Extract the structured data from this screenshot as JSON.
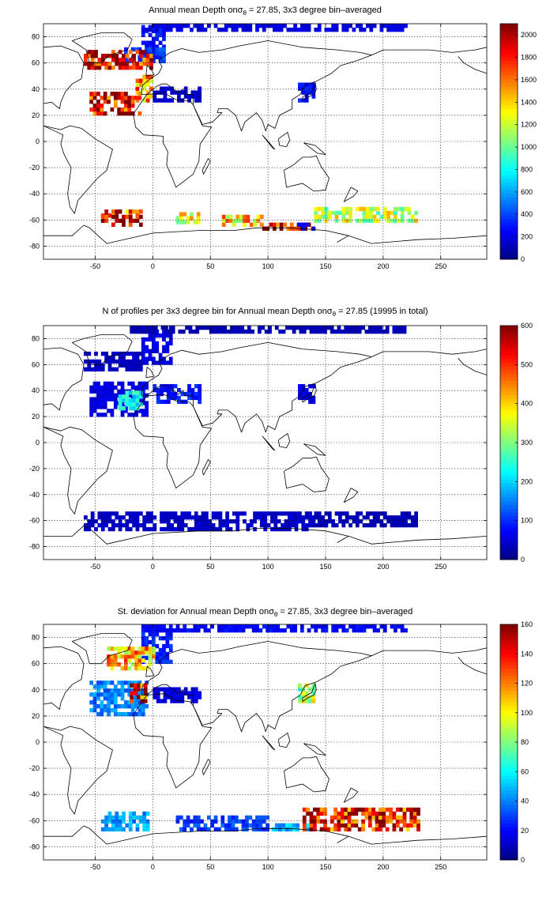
{
  "chart_data": [
    {
      "type": "heatmap",
      "title": "Annual mean Depth on",
      "title_symbol": "σ",
      "title_subscript": "θ",
      "title_rest": " = 27.85, 3x3 degree bin–averaged",
      "xlim": [
        -95,
        290
      ],
      "ylim": [
        -90,
        90
      ],
      "xticks": [
        -50,
        0,
        50,
        100,
        150,
        200,
        250
      ],
      "yticks": [
        -80,
        -60,
        -40,
        -20,
        0,
        20,
        40,
        60,
        80
      ],
      "clim": [
        0,
        2100
      ],
      "cticks": [
        0,
        200,
        400,
        600,
        800,
        1000,
        1200,
        1400,
        1600,
        1800,
        2000
      ],
      "grid": true,
      "colormap": "jet",
      "regions": [
        {
          "lon": [
            -10,
            10
          ],
          "lat": [
            65,
            88
          ],
          "value": 300
        },
        {
          "lon": [
            -25,
            10
          ],
          "lat": [
            60,
            72
          ],
          "value": 400
        },
        {
          "lon": [
            -30,
            0
          ],
          "lat": [
            55,
            68
          ],
          "value": 1900
        },
        {
          "lon": [
            -60,
            -30
          ],
          "lat": [
            55,
            68
          ],
          "value": 1950
        },
        {
          "lon": [
            -15,
            0
          ],
          "lat": [
            30,
            50
          ],
          "value": 1500
        },
        {
          "lon": [
            -55,
            -10
          ],
          "lat": [
            20,
            38
          ],
          "value": 1950
        },
        {
          "lon": [
            0,
            40
          ],
          "lat": [
            30,
            42
          ],
          "value": 150
        },
        {
          "lon": [
            126,
            140
          ],
          "lat": [
            30,
            45
          ],
          "value": 300
        },
        {
          "lon": [
            -45,
            -10
          ],
          "lat": [
            -58,
            -52
          ],
          "value": 1700
        },
        {
          "lon": [
            -45,
            -10
          ],
          "lat": [
            -65,
            -58
          ],
          "value": 1950
        },
        {
          "lon": [
            20,
            40
          ],
          "lat": [
            -63,
            -55
          ],
          "value": 1300
        },
        {
          "lon": [
            60,
            95
          ],
          "lat": [
            -65,
            -58
          ],
          "value": 1400
        },
        {
          "lon": [
            95,
            140
          ],
          "lat": [
            -68,
            -62
          ],
          "value": 1950
        },
        {
          "lon": [
            140,
            230
          ],
          "lat": [
            -62,
            -50
          ],
          "value": 1200
        },
        {
          "lon": [
            120,
            140
          ],
          "lat": [
            -68,
            -62
          ],
          "value": 200
        },
        {
          "lon": [
            -10,
            220
          ],
          "lat": [
            84,
            88
          ],
          "value": 200
        }
      ]
    },
    {
      "type": "heatmap",
      "title": "N of profiles per 3x3 degree bin for Annual mean Depth on",
      "title_symbol": "σ",
      "title_subscript": "θ",
      "title_rest": " = 27.85 (19995 in total)",
      "xlim": [
        -95,
        290
      ],
      "ylim": [
        -90,
        90
      ],
      "xticks": [
        -50,
        0,
        50,
        100,
        150,
        200,
        250
      ],
      "yticks": [
        -80,
        -60,
        -40,
        -20,
        0,
        20,
        40,
        60,
        80
      ],
      "clim": [
        0,
        600
      ],
      "cticks": [
        0,
        100,
        200,
        300,
        400,
        500,
        600
      ],
      "grid": true,
      "colormap": "jet",
      "regions": [
        {
          "lon": [
            -10,
            15
          ],
          "lat": [
            60,
            88
          ],
          "value": 60
        },
        {
          "lon": [
            -60,
            -10
          ],
          "lat": [
            55,
            70
          ],
          "value": 40
        },
        {
          "lon": [
            -55,
            -5
          ],
          "lat": [
            20,
            45
          ],
          "value": 60
        },
        {
          "lon": [
            -30,
            -10
          ],
          "lat": [
            25,
            40
          ],
          "value": 220
        },
        {
          "lon": [
            0,
            40
          ],
          "lat": [
            30,
            45
          ],
          "value": 90
        },
        {
          "lon": [
            126,
            140
          ],
          "lat": [
            30,
            45
          ],
          "value": 60
        },
        {
          "lon": [
            -60,
            140
          ],
          "lat": [
            -68,
            -55
          ],
          "value": 40
        },
        {
          "lon": [
            140,
            230
          ],
          "lat": [
            -65,
            -55
          ],
          "value": 30
        },
        {
          "lon": [
            -20,
            220
          ],
          "lat": [
            84,
            88
          ],
          "value": 30
        }
      ]
    },
    {
      "type": "heatmap",
      "title": "St. deviation for Annual mean Depth on",
      "title_symbol": "σ",
      "title_subscript": "θ",
      "title_rest": " = 27.85, 3x3 degree bin–averaged",
      "xlim": [
        -95,
        290
      ],
      "ylim": [
        -90,
        90
      ],
      "xticks": [
        -50,
        0,
        50,
        100,
        150,
        200,
        250
      ],
      "yticks": [
        -80,
        -60,
        -40,
        -20,
        0,
        20,
        40,
        60,
        80
      ],
      "clim": [
        0,
        160
      ],
      "cticks": [
        0,
        20,
        40,
        60,
        80,
        100,
        120,
        140,
        160
      ],
      "grid": true,
      "colormap": "jet",
      "regions": [
        {
          "lon": [
            -10,
            15
          ],
          "lat": [
            60,
            88
          ],
          "value": 25
        },
        {
          "lon": [
            -40,
            0
          ],
          "lat": [
            55,
            72
          ],
          "value": 110
        },
        {
          "lon": [
            -55,
            -5
          ],
          "lat": [
            20,
            45
          ],
          "value": 40
        },
        {
          "lon": [
            -20,
            -5
          ],
          "lat": [
            30,
            45
          ],
          "value": 140
        },
        {
          "lon": [
            0,
            40
          ],
          "lat": [
            30,
            42
          ],
          "value": 15
        },
        {
          "lon": [
            126,
            140
          ],
          "lat": [
            30,
            45
          ],
          "value": 90
        },
        {
          "lon": [
            -45,
            -5
          ],
          "lat": [
            -68,
            -55
          ],
          "value": 45
        },
        {
          "lon": [
            20,
            100
          ],
          "lat": [
            -68,
            -58
          ],
          "value": 30
        },
        {
          "lon": [
            100,
            140
          ],
          "lat": [
            -68,
            -62
          ],
          "value": 50
        },
        {
          "lon": [
            130,
            230
          ],
          "lat": [
            -68,
            -52
          ],
          "value": 140
        },
        {
          "lon": [
            -10,
            220
          ],
          "lat": [
            84,
            88
          ],
          "value": 20
        }
      ]
    }
  ]
}
